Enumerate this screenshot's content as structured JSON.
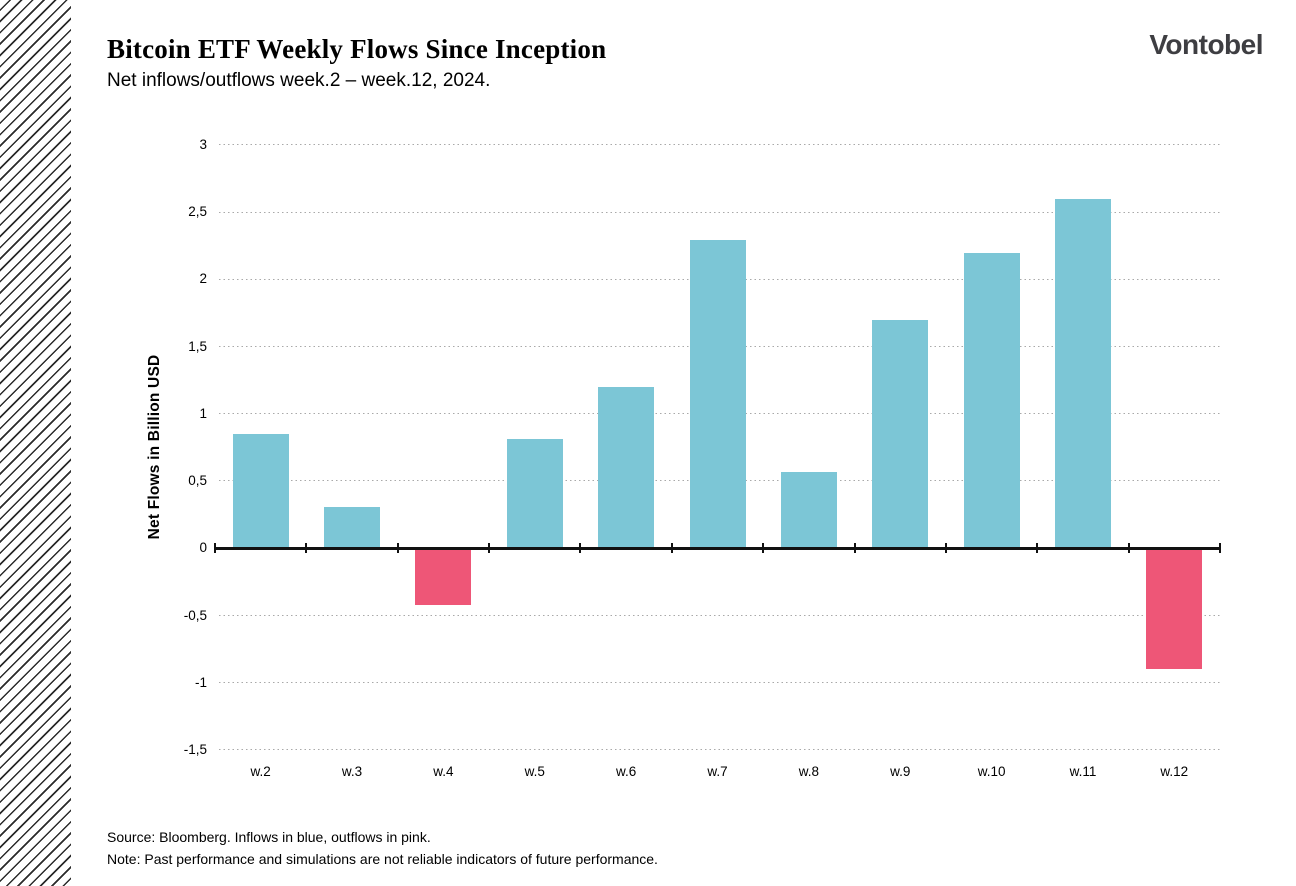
{
  "header": {
    "title": "Bitcoin ETF Weekly Flows Since Inception",
    "subtitle": "Net inflows/outflows week.2 – week.12, 2024.",
    "logo": "Vontobel"
  },
  "chart_data": {
    "type": "bar",
    "title": "Bitcoin ETF Weekly Flows Since Inception",
    "subtitle": "Net inflows/outflows week.2 – week.12, 2024.",
    "categories": [
      "w.2",
      "w.3",
      "w.4",
      "w.5",
      "w.6",
      "w.7",
      "w.8",
      "w.9",
      "w.10",
      "w.11",
      "w.12"
    ],
    "values": [
      0.85,
      0.31,
      -0.42,
      0.81,
      1.2,
      2.29,
      0.57,
      1.7,
      2.2,
      2.6,
      -0.9
    ],
    "xlabel": "",
    "ylabel": "Net Flows in Billion USD",
    "ylim": [
      -1.5,
      3
    ],
    "ytick_step": 0.5,
    "yticks": [
      3,
      2.5,
      2,
      1.5,
      1,
      0.5,
      0,
      -0.5,
      -1,
      -1.5
    ],
    "ytick_labels": [
      "3",
      "2,5",
      "2",
      "1,5",
      "1",
      "0,5",
      "0",
      "-0,5",
      "-1",
      "-1,5"
    ],
    "decimal_separator": ",",
    "grid": "horizontal-dotted",
    "legend_position": "none",
    "colors": {
      "inflow_blue": "#7cc6d6",
      "outflow_pink": "#ee5677",
      "axis": "#111111",
      "grid": "#a9a9a9"
    }
  },
  "footer": {
    "source": "Source: Bloomberg. Inflows in blue, outflows in pink.",
    "note": "Note: Past performance and simulations are not reliable indicators of future performance."
  }
}
